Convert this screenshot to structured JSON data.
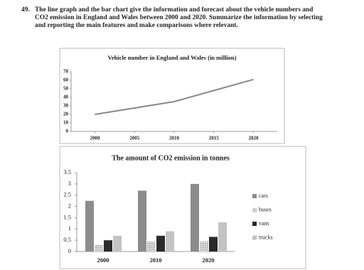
{
  "question": {
    "number": "49.",
    "text": "The line graph and the bar chart give the information and forecast about the vehicle numbers and CO2 emission in England and Wales between 2000 and 2020. Summarize the information by selecting and reporting the main features and make comparisons where relevant."
  },
  "chart_data": [
    {
      "type": "line",
      "title": "Vehicle number in England and Wales (in million)",
      "x": [
        2000,
        2010,
        2020
      ],
      "values": [
        20,
        35,
        61
      ],
      "color": "#888888",
      "xlim": [
        1997,
        2023
      ],
      "xticks": [
        2000,
        2005,
        2010,
        2015,
        2020
      ],
      "ylim": [
        0,
        70
      ],
      "yticks": [
        0,
        10,
        20,
        30,
        40,
        50,
        60,
        70
      ],
      "grid": false
    },
    {
      "type": "bar",
      "title": "The amount of CO2 emission in tonnes",
      "categories": [
        "2000",
        "2010",
        "2020"
      ],
      "series": [
        {
          "name": "cars",
          "color": "#8c8c8c",
          "values": [
            2.25,
            2.7,
            3.0
          ]
        },
        {
          "name": "buses",
          "color": "#c8c8c8",
          "values": [
            0.3,
            0.45,
            0.45
          ]
        },
        {
          "name": "vans",
          "color": "#2a2a2a",
          "values": [
            0.5,
            0.7,
            0.65
          ]
        },
        {
          "name": "trucks",
          "color": "#bdbdbd",
          "values": [
            0.7,
            0.9,
            1.3
          ]
        }
      ],
      "ylim": [
        0,
        3.5
      ],
      "yticks": [
        0,
        0.5,
        1,
        1.5,
        2,
        2.5,
        3,
        3.5
      ],
      "grid": false,
      "legend": "right"
    }
  ]
}
